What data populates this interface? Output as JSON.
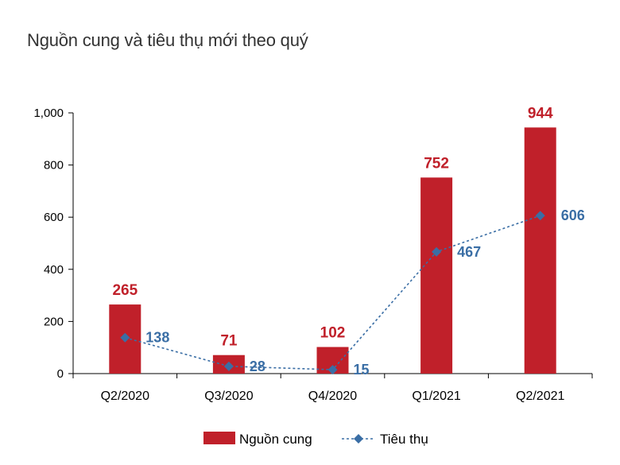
{
  "chart_data": {
    "type": "bar",
    "title": "Nguồn cung và tiêu thụ mới theo quý",
    "categories": [
      "Q2/2020",
      "Q3/2020",
      "Q4/2020",
      "Q1/2021",
      "Q2/2021"
    ],
    "series": [
      {
        "name": "Nguồn cung",
        "type": "bar",
        "color": "#c0202a",
        "label_color": "#c0202a",
        "values": [
          265,
          71,
          102,
          752,
          944
        ]
      },
      {
        "name": "Tiêu thụ",
        "type": "line",
        "color": "#3a6ea5",
        "label_color": "#3a6ea5",
        "line_style": "dashed",
        "marker": "diamond",
        "values": [
          138,
          28,
          15,
          467,
          606
        ]
      }
    ],
    "ylim": [
      0,
      1000
    ],
    "yticks": [
      0,
      200,
      400,
      600,
      800,
      1000
    ],
    "ytick_labels": [
      "0",
      "200",
      "400",
      "600",
      "800",
      "1,000"
    ],
    "grid": false,
    "legend_position": "bottom-center"
  }
}
